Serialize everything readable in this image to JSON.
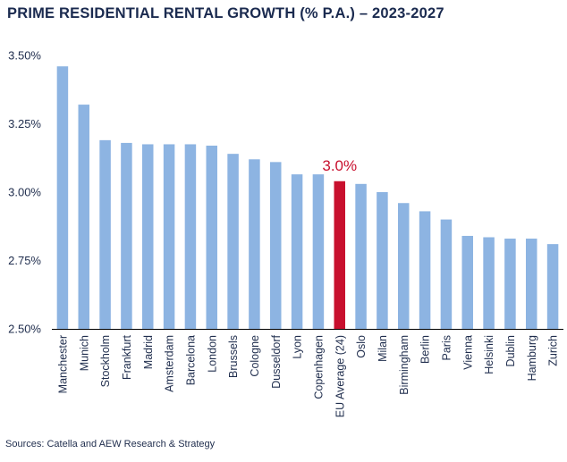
{
  "chart_data": {
    "type": "bar",
    "title": "PRIME RESIDENTIAL RENTAL GROWTH (% P.A.) – 2023-2027",
    "xlabel": "",
    "ylabel": "",
    "ylim": [
      2.5,
      3.5
    ],
    "yticks": [
      2.5,
      2.75,
      3.0,
      3.25,
      3.5
    ],
    "ytick_labels": [
      "2.50%",
      "2.75%",
      "3.00%",
      "3.25%",
      "3.50%"
    ],
    "grid": false,
    "legend": "none",
    "categories": [
      "Manchester",
      "Munich",
      "Stockholm",
      "Frankfurt",
      "Madrid",
      "Amsterdam",
      "Barcelona",
      "London",
      "Brussels",
      "Cologne",
      "Dusseldorf",
      "Lyon",
      "Copenhagen",
      "EU Average (24)",
      "Oslo",
      "Milan",
      "Birmingham",
      "Berlin",
      "Paris",
      "Vienna",
      "Helsinki",
      "Dublin",
      "Hamburg",
      "Zurich"
    ],
    "values": [
      3.46,
      3.32,
      3.19,
      3.18,
      3.175,
      3.175,
      3.175,
      3.17,
      3.14,
      3.12,
      3.11,
      3.065,
      3.065,
      3.04,
      3.03,
      3.0,
      2.96,
      2.93,
      2.9,
      2.84,
      2.835,
      2.83,
      2.83,
      2.81
    ],
    "highlight_index": 13,
    "annotations": [
      {
        "category": "EU Average (24)",
        "text": "3.0%"
      }
    ],
    "colors": {
      "bar": "#8db4e2",
      "highlight": "#c8102e",
      "axis": "#000000",
      "text": "#1f2d4d"
    }
  },
  "source": "Sources: Catella and AEW Research & Strategy"
}
